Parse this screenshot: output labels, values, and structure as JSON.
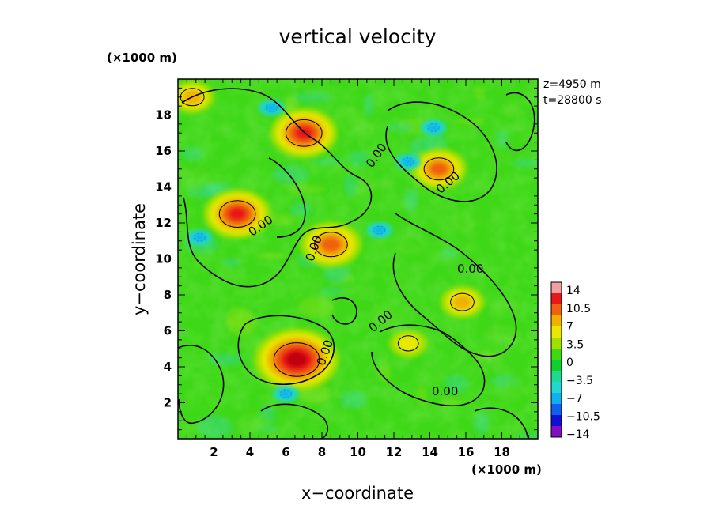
{
  "chart_data": {
    "type": "heatmap",
    "title": "vertical velocity",
    "xlabel": "x−coordinate",
    "ylabel": "y−coordinate",
    "x_unit": "(×1000 m)",
    "y_unit": "(×1000 m)",
    "xlim": [
      0,
      20
    ],
    "ylim": [
      0,
      20
    ],
    "x_ticks": [
      "2",
      "4",
      "6",
      "8",
      "10",
      "12",
      "14",
      "16",
      "18"
    ],
    "y_ticks": [
      "2",
      "4",
      "6",
      "8",
      "10",
      "12",
      "14",
      "16",
      "18"
    ],
    "annotation": [
      "z=4950 m",
      "t=28800 s"
    ],
    "contour_label": "0.00",
    "colorbar": {
      "labels": [
        "14",
        "10.5",
        "7",
        "3.5",
        "0",
        "−3.5",
        "−7",
        "−10.5",
        "−14"
      ],
      "range": [
        -14,
        14
      ],
      "colors": [
        "#f0a0a0",
        "#e81818",
        "#f06010",
        "#f0b000",
        "#e8e800",
        "#a0e000",
        "#40d810",
        "#10d030",
        "#20d890",
        "#20d8d0",
        "#10b0f0",
        "#1060f0",
        "#1010d0",
        "#8010c0"
      ]
    },
    "updraft_cores": [
      {
        "x": 7.0,
        "y": 17.0,
        "peak": 9
      },
      {
        "x": 3.3,
        "y": 12.5,
        "peak": 9
      },
      {
        "x": 8.5,
        "y": 10.8,
        "peak": 8
      },
      {
        "x": 6.6,
        "y": 4.4,
        "peak": 12
      },
      {
        "x": 14.5,
        "y": 15.0,
        "peak": 7
      },
      {
        "x": 15.8,
        "y": 7.6,
        "peak": 5
      },
      {
        "x": 12.8,
        "y": 5.3,
        "peak": 4
      },
      {
        "x": 0.8,
        "y": 19.0,
        "peak": 5
      }
    ],
    "downdraft_spots": [
      {
        "x": 5.2,
        "y": 18.4
      },
      {
        "x": 12.8,
        "y": 15.4
      },
      {
        "x": 14.2,
        "y": 17.3
      },
      {
        "x": 1.2,
        "y": 11.2
      },
      {
        "x": 6.0,
        "y": 2.5
      },
      {
        "x": 11.2,
        "y": 11.6
      }
    ]
  }
}
